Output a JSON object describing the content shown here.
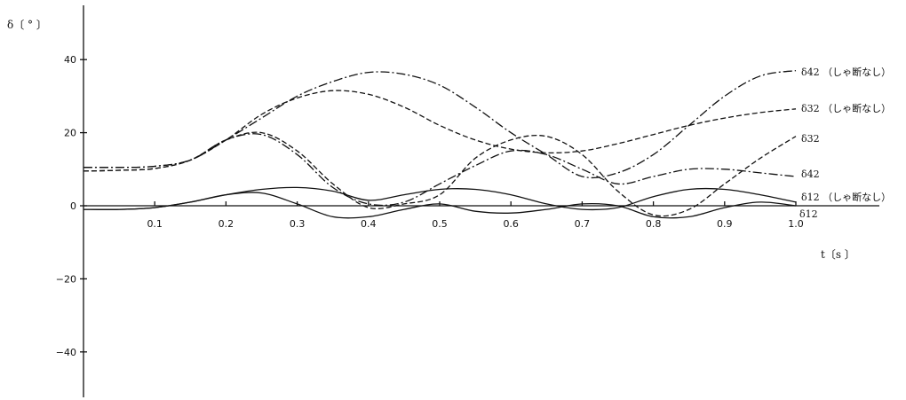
{
  "chart_data": {
    "type": "line",
    "xlabel": "t〔s 〕",
    "ylabel": "δ〔 ° 〕",
    "xlim": [
      0,
      1.0
    ],
    "ylim": [
      -50,
      55
    ],
    "x_ticks": [
      "0.1",
      "0.2",
      "0.3",
      "0.4",
      "0.5",
      "0.6",
      "0.7",
      "0.8",
      "0.9",
      "1.0"
    ],
    "y_ticks": [
      "40",
      "20",
      "0",
      "−20",
      "−40"
    ],
    "grid": false,
    "series": [
      {
        "name": "δ42 （しゃ断なし）",
        "style": "dashdot",
        "x": [
          0,
          0.05,
          0.1,
          0.15,
          0.2,
          0.25,
          0.3,
          0.35,
          0.4,
          0.45,
          0.5,
          0.55,
          0.6,
          0.65,
          0.7,
          0.75,
          0.8,
          0.85,
          0.9,
          0.95,
          1.0
        ],
        "y": [
          10.5,
          10.5,
          10.8,
          12.5,
          18,
          24,
          30,
          34,
          36.5,
          36,
          33,
          27,
          20,
          14,
          8,
          9,
          14,
          22,
          30,
          35.5,
          37
        ]
      },
      {
        "name": "δ32 （しゃ断なし）",
        "style": "dashed",
        "x": [
          0,
          0.05,
          0.1,
          0.15,
          0.2,
          0.25,
          0.3,
          0.35,
          0.4,
          0.45,
          0.5,
          0.55,
          0.6,
          0.65,
          0.7,
          0.75,
          0.8,
          0.85,
          0.9,
          0.95,
          1.0
        ],
        "y": [
          9.5,
          9.7,
          10.2,
          12.5,
          18,
          25,
          29.5,
          31.5,
          30.5,
          27,
          22,
          18,
          15.5,
          14.5,
          15,
          17,
          19.5,
          22,
          24,
          25.5,
          26.5
        ]
      },
      {
        "name": "δ32",
        "style": "dashed",
        "x": [
          0,
          0.05,
          0.1,
          0.15,
          0.2,
          0.25,
          0.3,
          0.35,
          0.4,
          0.45,
          0.5,
          0.55,
          0.6,
          0.65,
          0.7,
          0.75,
          0.8,
          0.85,
          0.9,
          0.95,
          1.0
        ],
        "y": [
          9.5,
          9.7,
          10.2,
          12.5,
          18,
          20,
          15,
          6,
          -0.5,
          0.5,
          3,
          13,
          18,
          19,
          14,
          4,
          -2.5,
          -1,
          6,
          13,
          19
        ]
      },
      {
        "name": "δ42",
        "style": "dashdot",
        "x": [
          0,
          0.05,
          0.1,
          0.15,
          0.2,
          0.25,
          0.3,
          0.35,
          0.4,
          0.45,
          0.5,
          0.55,
          0.6,
          0.65,
          0.7,
          0.75,
          0.8,
          0.85,
          0.9,
          0.95,
          1.0
        ],
        "y": [
          10.5,
          10.5,
          10.8,
          12.5,
          18,
          19.5,
          14,
          5,
          0.5,
          1,
          6,
          11,
          15,
          14,
          10,
          6,
          8,
          10,
          10,
          9,
          8
        ]
      },
      {
        "name": "δ12 （しゃ断なし）",
        "style": "solid",
        "x": [
          0,
          0.05,
          0.1,
          0.15,
          0.2,
          0.25,
          0.3,
          0.35,
          0.4,
          0.45,
          0.5,
          0.55,
          0.6,
          0.65,
          0.7,
          0.75,
          0.8,
          0.85,
          0.9,
          0.95,
          1.0
        ],
        "y": [
          -1,
          -1,
          -0.5,
          1,
          3,
          4.5,
          5,
          4,
          1.5,
          3,
          4.5,
          4.5,
          3,
          0.5,
          -1,
          -0.5,
          2.5,
          4.5,
          4.5,
          3,
          1
        ]
      },
      {
        "name": "δ12",
        "style": "solid",
        "x": [
          0,
          0.05,
          0.1,
          0.15,
          0.2,
          0.25,
          0.3,
          0.35,
          0.4,
          0.45,
          0.5,
          0.55,
          0.6,
          0.65,
          0.7,
          0.75,
          0.8,
          0.85,
          0.9,
          0.95,
          1.0
        ],
        "y": [
          -1,
          -1,
          -0.5,
          1,
          3,
          3.5,
          0.5,
          -3,
          -3,
          -1,
          0.5,
          -1.5,
          -2,
          -1,
          0.5,
          0,
          -3,
          -3,
          -0.5,
          1,
          0
        ]
      }
    ]
  }
}
